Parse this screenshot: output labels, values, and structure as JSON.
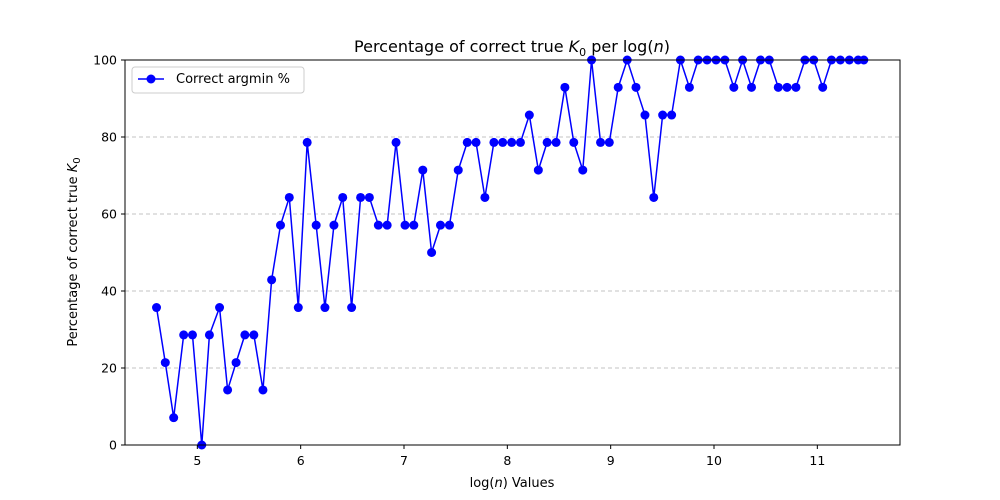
{
  "chart_data": {
    "type": "line",
    "title": "Percentage of correct true K₀ per log(n)",
    "xlabel": "log(n) Values",
    "ylabel": "Percentage of correct true K₀",
    "xlim": [
      4.3,
      11.8
    ],
    "ylim": [
      0,
      100
    ],
    "xticks": [
      5,
      6,
      7,
      8,
      9,
      10,
      11
    ],
    "yticks": [
      0,
      20,
      40,
      60,
      80,
      100
    ],
    "grid": "y-dashed",
    "legend_position": "upper-left",
    "colors": {
      "series": "#0000ff",
      "grid": "#b0b0b0"
    },
    "series": [
      {
        "name": "Correct argmin %",
        "x": [
          4.605,
          4.69,
          4.771,
          4.868,
          4.953,
          5.043,
          5.117,
          5.215,
          5.293,
          5.375,
          5.46,
          5.547,
          5.635,
          5.719,
          5.805,
          5.89,
          5.977,
          6.063,
          6.15,
          6.235,
          6.322,
          6.407,
          6.493,
          6.58,
          6.665,
          6.752,
          6.837,
          6.923,
          7.01,
          7.095,
          7.182,
          7.267,
          7.353,
          7.44,
          7.525,
          7.612,
          7.697,
          7.783,
          7.87,
          7.955,
          8.042,
          8.127,
          8.213,
          8.3,
          8.385,
          8.472,
          8.557,
          8.643,
          8.73,
          8.815,
          8.902,
          8.987,
          9.073,
          9.16,
          9.245,
          9.332,
          9.417,
          9.503,
          9.59,
          9.675,
          9.762,
          9.847,
          9.933,
          10.02,
          10.105,
          10.192,
          10.277,
          10.363,
          10.45,
          10.535,
          10.622,
          10.707,
          10.793,
          10.88,
          10.965,
          11.052,
          11.137,
          11.223,
          11.31,
          11.395,
          11.45
        ],
        "y": [
          35.7,
          21.4,
          7.1,
          28.6,
          28.6,
          0.0,
          28.6,
          35.7,
          14.3,
          21.4,
          28.6,
          28.6,
          14.3,
          42.9,
          57.1,
          64.3,
          35.7,
          78.6,
          57.1,
          35.7,
          57.1,
          64.3,
          35.7,
          64.3,
          64.3,
          57.1,
          57.1,
          78.6,
          57.1,
          57.1,
          71.4,
          50.0,
          57.1,
          57.1,
          71.4,
          78.6,
          78.6,
          64.3,
          78.6,
          78.6,
          78.6,
          78.6,
          85.7,
          71.4,
          78.6,
          78.6,
          92.9,
          78.6,
          71.4,
          100,
          78.6,
          78.6,
          92.9,
          100,
          92.9,
          85.7,
          64.3,
          85.7,
          85.7,
          100,
          92.9,
          100,
          100,
          100,
          100,
          92.9,
          100,
          92.9,
          100,
          100,
          92.9,
          92.9,
          92.9,
          100,
          100,
          92.9,
          100,
          100,
          100,
          100,
          100
        ]
      }
    ]
  }
}
